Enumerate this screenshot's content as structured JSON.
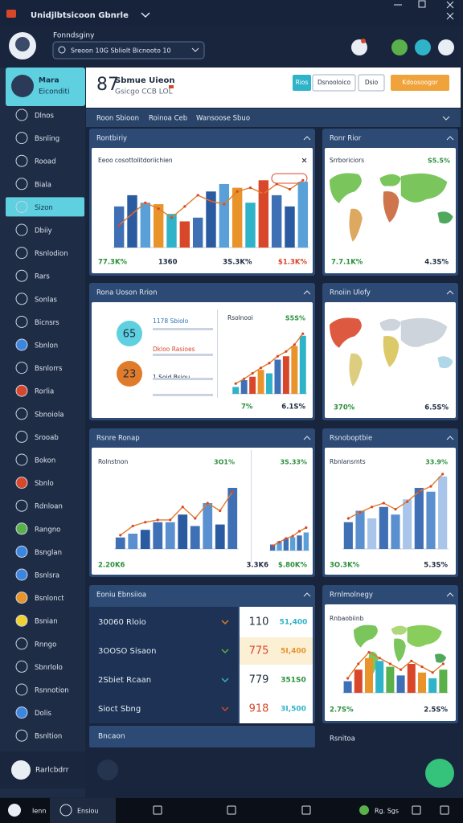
{
  "window": {
    "title": "Unidjlbtsicoon Gbnrle"
  },
  "header": {
    "user_label": "Fonndsginy",
    "search": "Sreoon 10G Sbliolt Bicnooto 10"
  },
  "sidebar": {
    "profile": [
      "Mara",
      "Eiconditi"
    ],
    "active_item": 4,
    "items": [
      "Dlnos",
      "Bsnling",
      "Rooad",
      "Biala",
      "Sizon",
      "Dbiiy",
      "Rsnlodion",
      "Rars",
      "Sonlas",
      "Bicnsrs",
      "Sbnlon",
      "Bsnlorrs",
      "Rorlia",
      "Sbnoiola",
      "Srooab",
      "Bokon",
      "Sbnlo",
      "Rdnloan",
      "Rangno",
      "Bsnglan",
      "Bsnlsra",
      "Bsnlonct",
      "Bsnian",
      "Rnngo",
      "Sbnrlolo",
      "Rsnnotion",
      "Dolis",
      "Bsnltion"
    ],
    "footer_user": "Rarlcbdrr"
  },
  "top_card": {
    "number": "87",
    "title": "Sbmue Uieon",
    "subtitle": "Gsicgo CCB LOL",
    "buttons": [
      "Rios",
      "Dsnooloico",
      "Dsio",
      "Kdoosoogor"
    ]
  },
  "tabs": [
    "Roon Sbioon",
    "Roinoa Ceb",
    "Wansoose Sbuo"
  ],
  "panels": [
    {
      "title": "Rontbiriy",
      "chart": {
        "title": "Eeoo cosottolitdoriichien",
        "ylim": [
          0,
          100
        ],
        "values": [
          55,
          70,
          60,
          58,
          45,
          35,
          40,
          75,
          85,
          80,
          60,
          90,
          70,
          55,
          88
        ],
        "colors": [
          "#3f6fb5",
          "#2a5aa0",
          "#5aa0d8",
          "#e8942a",
          "#2fb3c9",
          "#d9472b"
        ],
        "line": [
          30,
          45,
          60,
          52,
          40,
          55,
          70,
          62,
          58,
          75,
          80,
          72,
          85,
          78,
          90
        ],
        "footer": [
          "77.3K%",
          "1360",
          "3S.3K%",
          "$1.3K%"
        ]
      }
    },
    {
      "title": "Ronr Rior",
      "chart": {
        "title": "Srrboriciors",
        "top_value": "S5.5%",
        "footer": [
          "7.7.1K%",
          "4.3S%"
        ]
      }
    },
    {
      "title": "Rona Uoson Rrion",
      "circles": [
        "65",
        "23"
      ],
      "notes": [
        "1178 Sbiolo",
        "Dkloo Rasioes",
        "1 Soid Bsiou"
      ],
      "chart": {
        "title": "Rsolnooi",
        "top_value": "S5S%",
        "ylim": [
          0,
          100
        ],
        "values": [
          10,
          20,
          25,
          35,
          30,
          50,
          55,
          70,
          85
        ],
        "colors": [
          "#2fb3c9",
          "#3f6fb5",
          "#d9472b",
          "#e8942a"
        ],
        "line": [
          15,
          22,
          30,
          38,
          45,
          55,
          62,
          72,
          88
        ],
        "footer": [
          "7%",
          "6.1S%"
        ]
      }
    },
    {
      "title": "Rnoiin Ulofy",
      "chart": {
        "title": "",
        "footer": [
          "370%",
          "6.5S%"
        ]
      }
    },
    {
      "title": "Rsnre Ronap",
      "chart": {
        "title": "Rolnstnon",
        "top_value": "3O1%",
        "ylim": [
          0,
          100
        ],
        "values": [
          15,
          20,
          25,
          35,
          35,
          45,
          30,
          60,
          32,
          80
        ],
        "colors": [
          "#3f6fb5",
          "#5a8fd0",
          "#2a5aa0"
        ],
        "line": [
          18,
          30,
          35,
          38,
          38,
          55,
          40,
          60,
          50,
          75
        ],
        "footer": [
          "2.20K6",
          "3.3K6"
        ]
      },
      "chart2": {
        "title": "",
        "top_value": "3S.33%",
        "ylim": [
          0,
          100
        ],
        "values": [
          10,
          15,
          20,
          22,
          25,
          30
        ],
        "colors": [
          "#3f6fb5",
          "#5aa0d8"
        ],
        "line": [
          8,
          14,
          20,
          24,
          32,
          38
        ],
        "footer": [
          "$.80K%"
        ]
      }
    },
    {
      "title": "Rsnoboptbie",
      "chart": {
        "title": "Rbnlansrnts",
        "top_value": "33.9%",
        "ylim": [
          0,
          100
        ],
        "values": [
          35,
          50,
          40,
          55,
          45,
          65,
          80,
          75,
          95
        ],
        "colors": [
          "#3f6fb5",
          "#5a8fd0",
          "#a9c5ea"
        ],
        "line": [
          40,
          48,
          55,
          60,
          52,
          62,
          75,
          82,
          98
        ],
        "footer": [
          "3O.3K%",
          "5.3S%"
        ]
      }
    },
    {
      "title": "Eoniu Ebnsiioa",
      "rows": [
        {
          "label": "30060 Rloio",
          "value": "110",
          "value2": "51,400"
        },
        {
          "label": "3OOSO Sisaon",
          "value": "775",
          "value2": "5I,400"
        },
        {
          "label": "2Sbiet Rcaan",
          "value": "779",
          "value2": "351S0"
        },
        {
          "label": "Sioct Sbng",
          "value": "918",
          "value2": "3I,500"
        }
      ],
      "footer": [
        "Bncaon",
        "Rsnitoa"
      ]
    },
    {
      "title": "Rrnlmolnegy",
      "chart": {
        "title": "Rnbaobiinb",
        "ylim": [
          0,
          100
        ],
        "values": [
          20,
          40,
          60,
          55,
          45,
          30,
          50,
          35,
          25,
          40
        ],
        "colors": [
          "#3f6fb5",
          "#d9472b",
          "#e8942a",
          "#2fb3c9",
          "#5ab04a"
        ],
        "line": [
          25,
          50,
          70,
          60,
          50,
          40,
          55,
          45,
          35,
          50
        ],
        "footer": [
          "2.7S%",
          "2.5S%"
        ]
      }
    }
  ],
  "taskbar": [
    "Ienn",
    "Ensiou",
    "Rg. Sgs"
  ]
}
